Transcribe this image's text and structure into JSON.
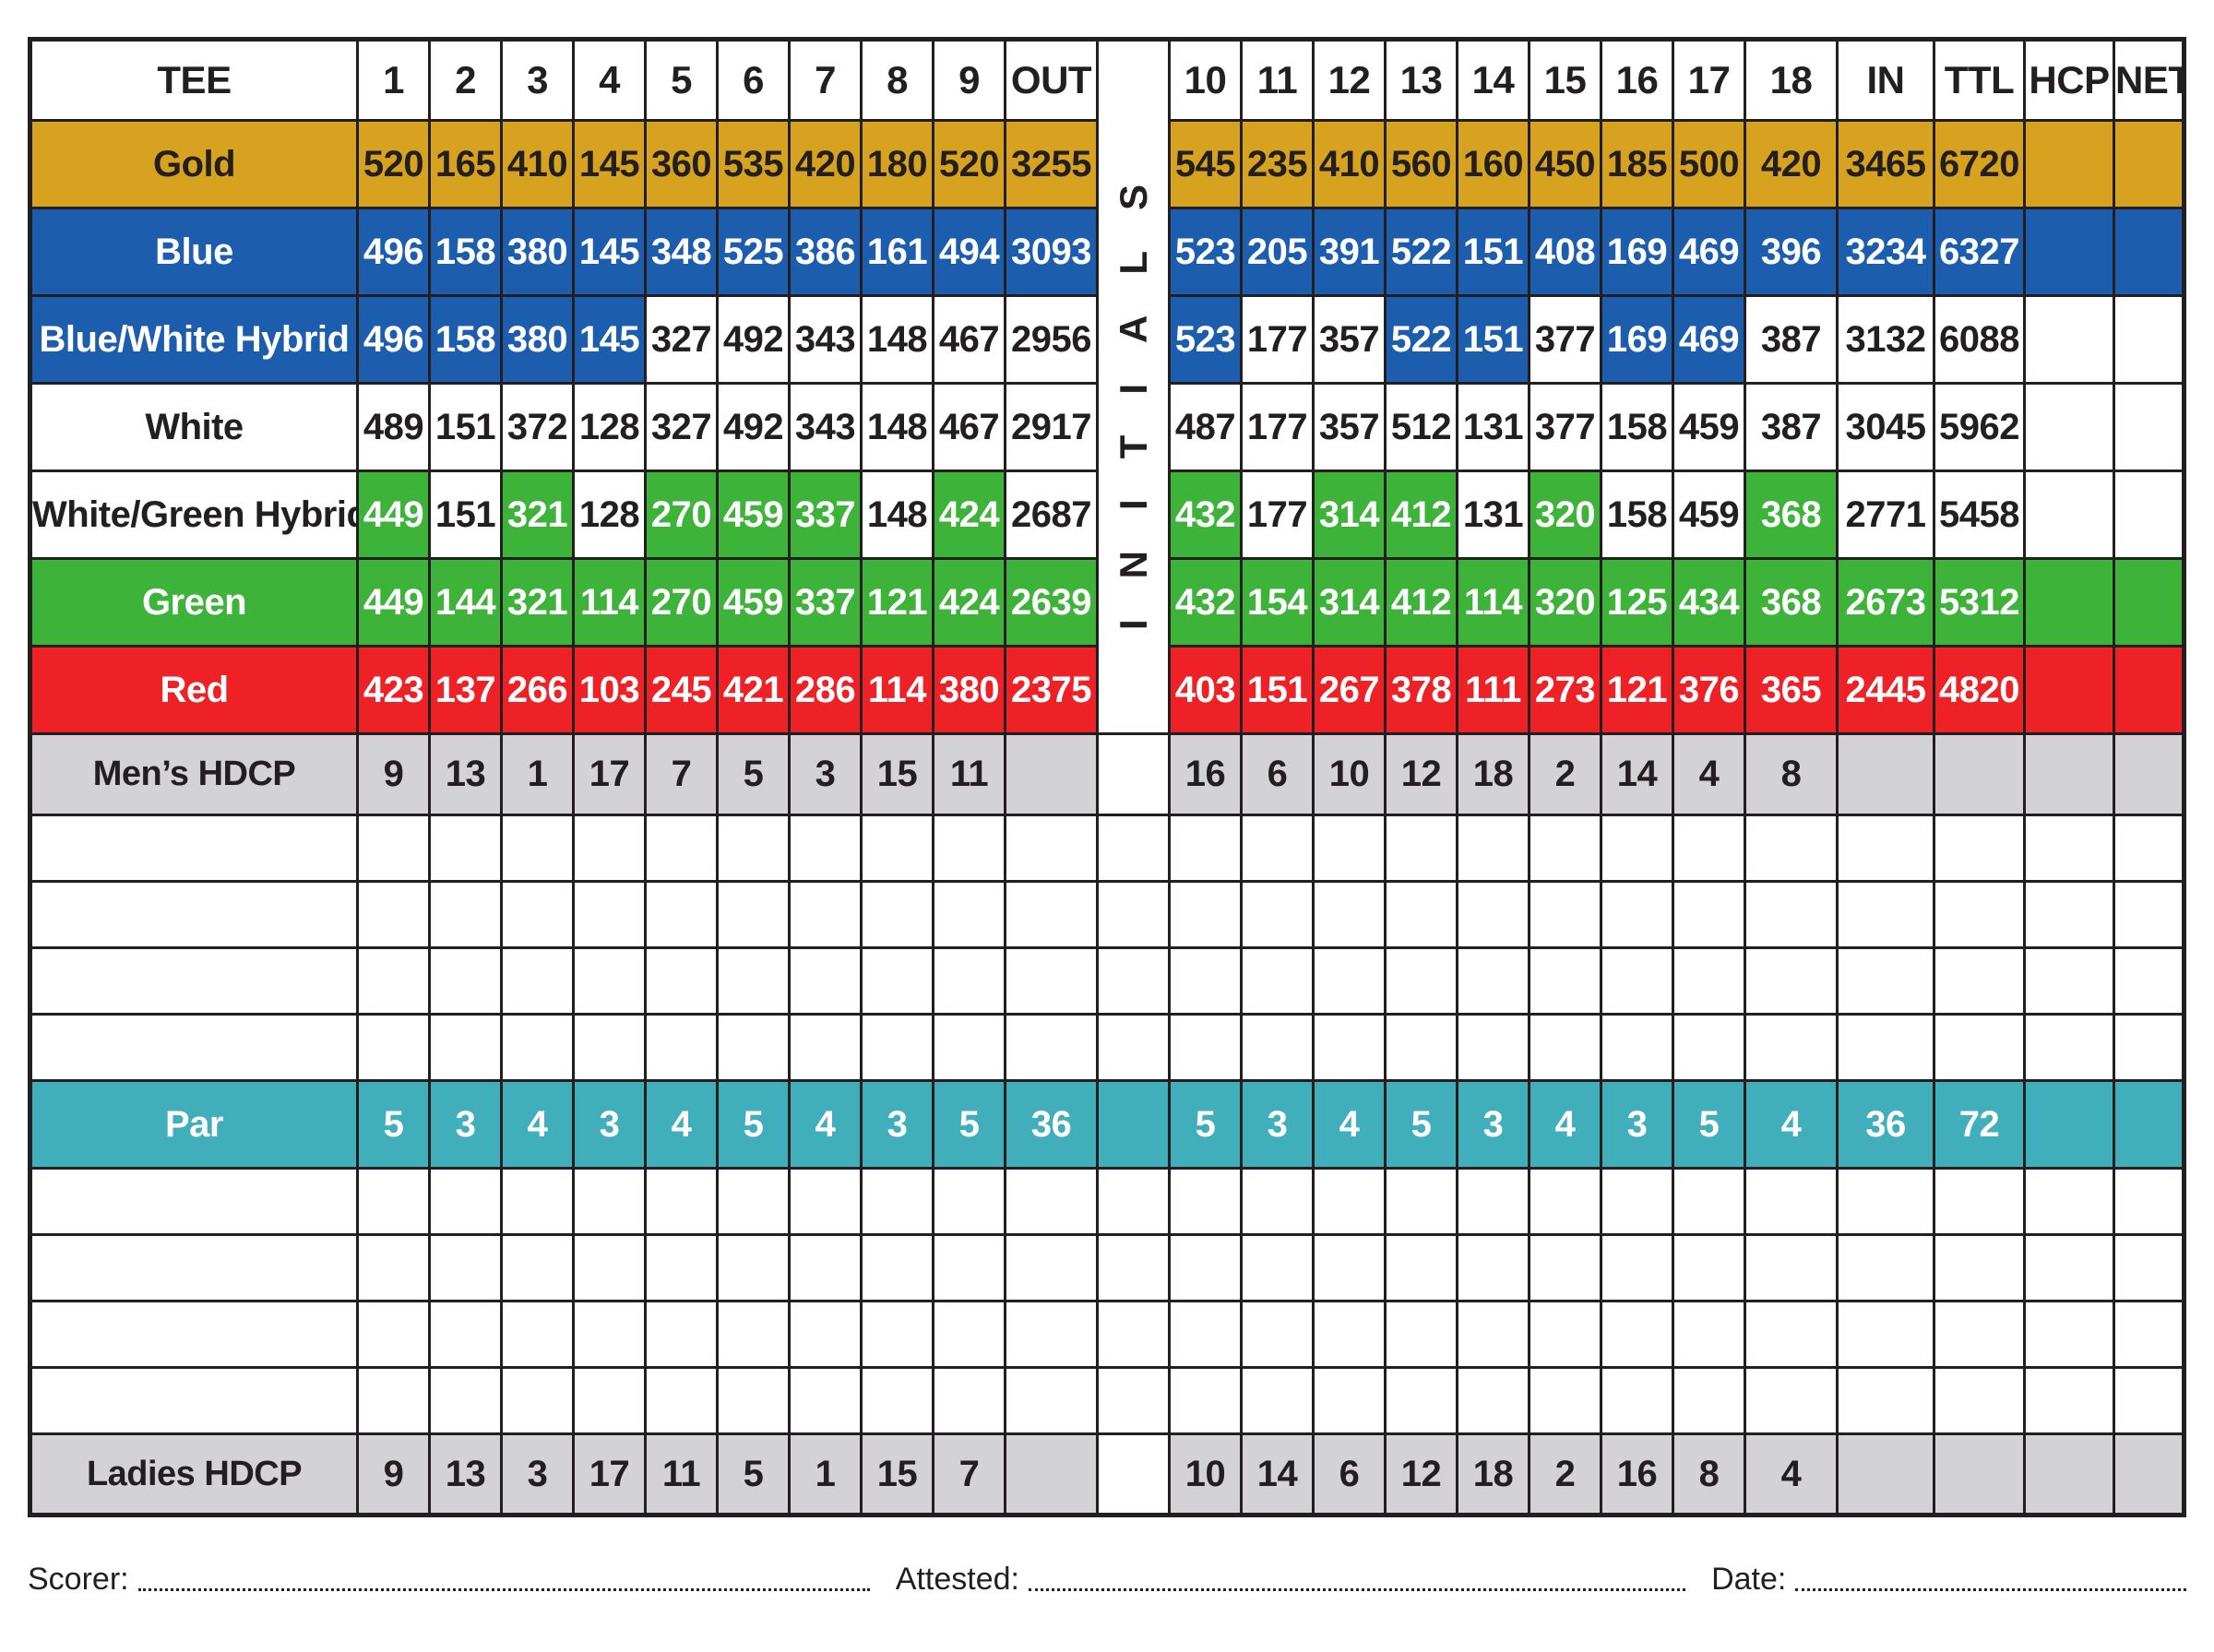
{
  "header": {
    "tee_label": "TEE",
    "front_holes": [
      "1",
      "2",
      "3",
      "4",
      "5",
      "6",
      "7",
      "8",
      "9"
    ],
    "out_label": "OUT",
    "back_holes": [
      "10",
      "11",
      "12",
      "13",
      "14",
      "15",
      "16",
      "17",
      "18"
    ],
    "in_label": "IN",
    "ttl_label": "TTL",
    "hcp_label": "HCP",
    "net_label": "NET"
  },
  "initials_label": "INITIALS",
  "palette": {
    "gold": "#d6a21f",
    "blue": "#1d5dad",
    "green": "#3db33a",
    "red": "#ee2126",
    "teal": "#40aebb",
    "gray": "#d3d3d5",
    "border": "#231f20"
  },
  "rows": [
    {
      "label": "Gold",
      "style": "gold",
      "front": [
        "520",
        "165",
        "410",
        "145",
        "360",
        "535",
        "420",
        "180",
        "520"
      ],
      "out": "3255",
      "back": [
        "545",
        "235",
        "410",
        "560",
        "160",
        "450",
        "185",
        "500",
        "420"
      ],
      "in": "3465",
      "ttl": "6720",
      "hcp": "",
      "net": ""
    },
    {
      "label": "Blue",
      "style": "blue",
      "front": [
        "496",
        "158",
        "380",
        "145",
        "348",
        "525",
        "386",
        "161",
        "494"
      ],
      "out": "3093",
      "back": [
        "523",
        "205",
        "391",
        "522",
        "151",
        "408",
        "169",
        "469",
        "396"
      ],
      "in": "3234",
      "ttl": "6327",
      "hcp": "",
      "net": ""
    },
    {
      "label": "Blue/White Hybrid",
      "style": "blue",
      "label_style": "blue",
      "front": [
        "496",
        "158",
        "380",
        "145",
        "327",
        "492",
        "343",
        "148",
        "467"
      ],
      "front_styles": [
        "blue",
        "blue",
        "blue",
        "blue",
        "white",
        "white",
        "white",
        "white",
        "white"
      ],
      "out": "2956",
      "out_style": "white",
      "back": [
        "523",
        "177",
        "357",
        "522",
        "151",
        "377",
        "169",
        "469",
        "387"
      ],
      "back_styles": [
        "blue",
        "white",
        "white",
        "blue",
        "blue",
        "white",
        "blue",
        "blue",
        "white"
      ],
      "in": "3132",
      "in_style": "white",
      "ttl": "6088",
      "ttl_style": "white",
      "hcp": "",
      "hcp_style": "white",
      "net": "",
      "net_style": "white"
    },
    {
      "label": "White",
      "style": "white",
      "front": [
        "489",
        "151",
        "372",
        "128",
        "327",
        "492",
        "343",
        "148",
        "467"
      ],
      "out": "2917",
      "back": [
        "487",
        "177",
        "357",
        "512",
        "131",
        "377",
        "158",
        "459",
        "387"
      ],
      "in": "3045",
      "ttl": "5962",
      "hcp": "",
      "net": ""
    },
    {
      "label": "White/Green Hybrid",
      "style": "green",
      "label_style": "white",
      "front": [
        "449",
        "151",
        "321",
        "128",
        "270",
        "459",
        "337",
        "148",
        "424"
      ],
      "front_styles": [
        "green",
        "white",
        "green",
        "white",
        "green",
        "green",
        "green",
        "white",
        "green"
      ],
      "out": "2687",
      "out_style": "white",
      "back": [
        "432",
        "177",
        "314",
        "412",
        "131",
        "320",
        "158",
        "459",
        "368"
      ],
      "back_styles": [
        "green",
        "white",
        "green",
        "green",
        "white",
        "green",
        "white",
        "white",
        "green"
      ],
      "in": "2771",
      "in_style": "white",
      "ttl": "5458",
      "ttl_style": "white",
      "hcp": "",
      "hcp_style": "white",
      "net": "",
      "net_style": "white"
    },
    {
      "label": "Green",
      "style": "green",
      "front": [
        "449",
        "144",
        "321",
        "114",
        "270",
        "459",
        "337",
        "121",
        "424"
      ],
      "out": "2639",
      "back": [
        "432",
        "154",
        "314",
        "412",
        "114",
        "320",
        "125",
        "434",
        "368"
      ],
      "in": "2673",
      "ttl": "5312",
      "hcp": "",
      "net": ""
    },
    {
      "label": "Red",
      "style": "red",
      "front": [
        "423",
        "137",
        "266",
        "103",
        "245",
        "421",
        "286",
        "114",
        "380"
      ],
      "out": "2375",
      "back": [
        "403",
        "151",
        "267",
        "378",
        "111",
        "273",
        "121",
        "376",
        "365"
      ],
      "in": "2445",
      "ttl": "4820",
      "hcp": "",
      "net": ""
    },
    {
      "label": "Men’s HDCP",
      "style": "gray",
      "strip_style": "white",
      "front": [
        "9",
        "13",
        "1",
        "17",
        "7",
        "5",
        "3",
        "15",
        "11"
      ],
      "out": "",
      "back": [
        "16",
        "6",
        "10",
        "12",
        "18",
        "2",
        "14",
        "4",
        "8"
      ],
      "in": "",
      "ttl": "",
      "hcp": "",
      "net": ""
    },
    {
      "style": "blank",
      "strip_style": "blank"
    },
    {
      "style": "blank",
      "strip_style": "blank"
    },
    {
      "style": "blank",
      "strip_style": "blank"
    },
    {
      "style": "blank",
      "strip_style": "blank"
    },
    {
      "label": "Par",
      "style": "teal",
      "strip_style": "teal",
      "front": [
        "5",
        "3",
        "4",
        "3",
        "4",
        "5",
        "4",
        "3",
        "5"
      ],
      "out": "36",
      "back": [
        "5",
        "3",
        "4",
        "5",
        "3",
        "4",
        "3",
        "5",
        "4"
      ],
      "in": "36",
      "ttl": "72",
      "hcp": "",
      "net": ""
    },
    {
      "style": "blank",
      "strip_style": "blank"
    },
    {
      "style": "blank",
      "strip_style": "blank"
    },
    {
      "style": "blank",
      "strip_style": "blank"
    },
    {
      "style": "blank",
      "strip_style": "blank"
    },
    {
      "label": "Ladies HDCP",
      "style": "gray",
      "strip_style": "white",
      "front": [
        "9",
        "13",
        "3",
        "17",
        "11",
        "5",
        "1",
        "15",
        "7"
      ],
      "out": "",
      "back": [
        "10",
        "14",
        "6",
        "12",
        "18",
        "2",
        "16",
        "8",
        "4"
      ],
      "in": "",
      "ttl": "",
      "hcp": "",
      "net": ""
    }
  ],
  "footer": {
    "scorer_label": "Scorer:",
    "attested_label": "Attested:",
    "date_label": "Date:"
  }
}
